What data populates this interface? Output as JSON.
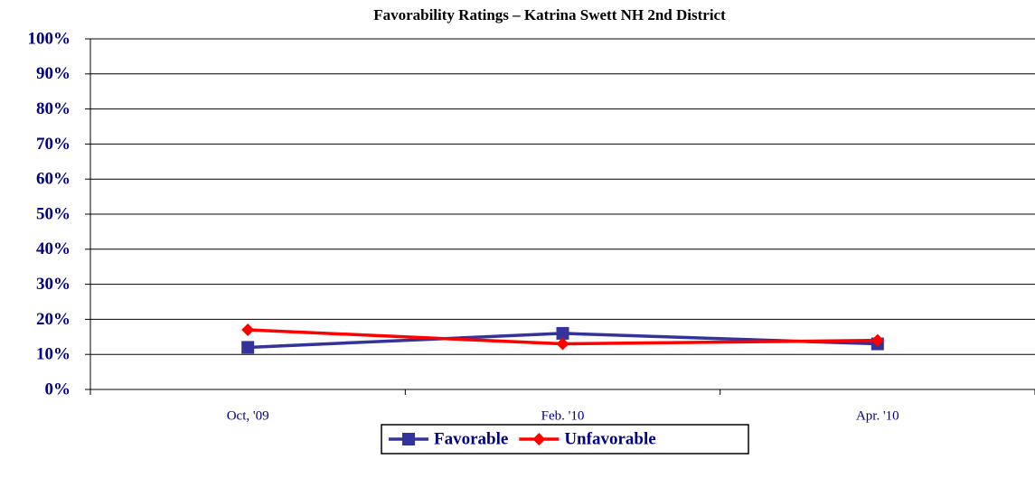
{
  "chart_data": {
    "type": "line",
    "title": "Favorability Ratings – Katrina Swett NH 2nd District",
    "categories": [
      "Oct, '09",
      "Feb. '10",
      "Apr. '10"
    ],
    "series": [
      {
        "name": "Favorable",
        "color": "#333399",
        "marker": "square",
        "values": [
          12,
          16,
          13
        ]
      },
      {
        "name": "Unfavorable",
        "color": "#ff0000",
        "marker": "diamond",
        "values": [
          17,
          13,
          14
        ]
      }
    ],
    "ylim": [
      0,
      100
    ],
    "yticks": [
      {
        "value": 0,
        "label": "0%"
      },
      {
        "value": 10,
        "label": "10%"
      },
      {
        "value": 20,
        "label": "20%"
      },
      {
        "value": 30,
        "label": "30%"
      },
      {
        "value": 40,
        "label": "40%"
      },
      {
        "value": 50,
        "label": "50%"
      },
      {
        "value": 60,
        "label": "60%"
      },
      {
        "value": 70,
        "label": "70%"
      },
      {
        "value": 80,
        "label": "80%"
      },
      {
        "value": 90,
        "label": "90%"
      },
      {
        "value": 100,
        "label": "100%"
      }
    ],
    "grid": true,
    "legend": "bottom"
  }
}
